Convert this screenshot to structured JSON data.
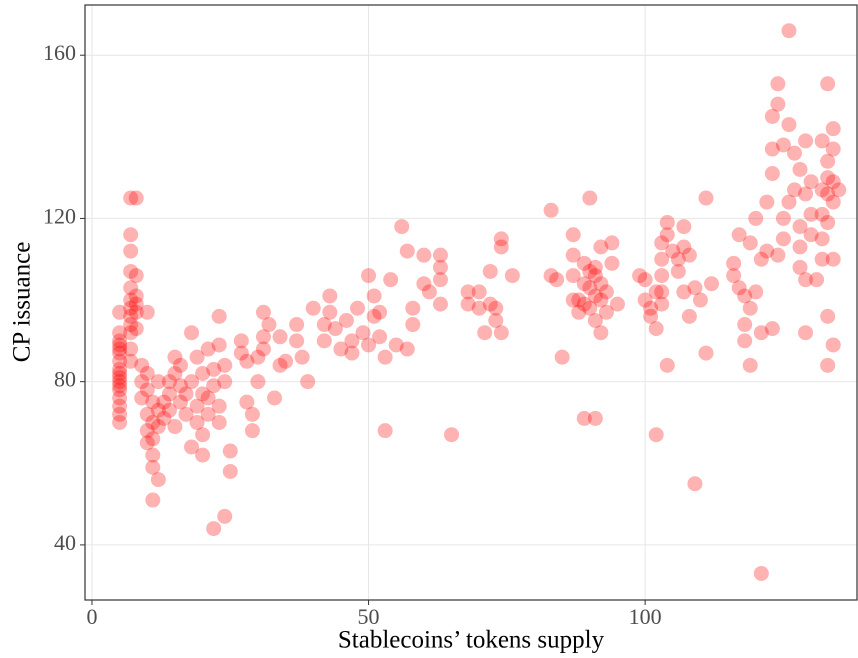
{
  "chart_data": {
    "type": "scatter",
    "x_label": "Stablecoins’ tokens supply",
    "y_label": "CP issuance",
    "color": "#ff0000",
    "grid": true,
    "xlim": [
      -1.26,
      138.3
    ],
    "ylim": [
      26.5,
      172.3
    ],
    "xticks": [
      0,
      50,
      100
    ],
    "yticks": [
      40,
      80,
      120,
      160
    ],
    "x": [
      5,
      5,
      5,
      5,
      5,
      5,
      5,
      5,
      5,
      5,
      5,
      5,
      5,
      5,
      5,
      5,
      5,
      7,
      7,
      7,
      7,
      7,
      7,
      7,
      7,
      7,
      7,
      7,
      7,
      8,
      8,
      8,
      8,
      8,
      8,
      9,
      9,
      9,
      10,
      10,
      10,
      10,
      10,
      10,
      11,
      11,
      11,
      11,
      11,
      11,
      12,
      12,
      12,
      12,
      13,
      13,
      14,
      14,
      14,
      15,
      15,
      15,
      16,
      16,
      16,
      17,
      17,
      18,
      18,
      18,
      19,
      19,
      19,
      20,
      20,
      20,
      20,
      21,
      21,
      21,
      22,
      22,
      22,
      23,
      23,
      23,
      23,
      24,
      24,
      25,
      25,
      24,
      27,
      27,
      28,
      28,
      29,
      29,
      30,
      30,
      31,
      31,
      31,
      32,
      33,
      34,
      34,
      35,
      37,
      37,
      38,
      39,
      40,
      42,
      42,
      43,
      43,
      44,
      45,
      46,
      47,
      47,
      48,
      49,
      50,
      50,
      51,
      51,
      52,
      52,
      53,
      53,
      54,
      55,
      56,
      57,
      57,
      58,
      58,
      60,
      60,
      61,
      63,
      63,
      63,
      63,
      65,
      68,
      68,
      70,
      70,
      71,
      72,
      72,
      73,
      73,
      74,
      74,
      74,
      76,
      83,
      83,
      84,
      85,
      87,
      87,
      87,
      87,
      88,
      88,
      89,
      89,
      89,
      89,
      90,
      90,
      90,
      90,
      91,
      91,
      91,
      91,
      91,
      92,
      92,
      92,
      92,
      93,
      93,
      94,
      94,
      95,
      99,
      100,
      100,
      101,
      101,
      102,
      102,
      102,
      103,
      103,
      103,
      103,
      103,
      104,
      104,
      104,
      105,
      106,
      106,
      107,
      107,
      107,
      108,
      108,
      109,
      109,
      110,
      111,
      111,
      112,
      116,
      116,
      117,
      117,
      118,
      118,
      118,
      119,
      119,
      119,
      120,
      120,
      121,
      121,
      121,
      122,
      122,
      123,
      123,
      123,
      123,
      124,
      124,
      124,
      125,
      125,
      125,
      126,
      126,
      126,
      127,
      127,
      128,
      128,
      128,
      128,
      129,
      129,
      129,
      129,
      130,
      130,
      130,
      131,
      132,
      132,
      132,
      132,
      132,
      133,
      133,
      133,
      133,
      133,
      133,
      133,
      134,
      134,
      134,
      134,
      134,
      134,
      135
    ],
    "values": [
      70,
      72,
      74,
      76,
      78,
      79,
      80,
      81,
      82,
      83,
      85,
      87,
      88,
      89,
      90,
      92,
      97,
      125,
      116,
      112,
      107,
      103,
      100,
      98,
      96,
      94,
      92,
      88,
      85,
      125,
      106,
      101,
      99,
      97,
      93,
      84,
      80,
      76,
      82,
      78,
      72,
      68,
      65,
      97,
      75,
      70,
      66,
      62,
      59,
      51,
      80,
      73,
      69,
      56,
      71,
      75,
      80,
      77,
      73,
      82,
      69,
      86,
      84,
      79,
      75,
      77,
      72,
      80,
      64,
      92,
      86,
      74,
      70,
      82,
      77,
      67,
      62,
      88,
      76,
      72,
      83,
      79,
      44,
      96,
      89,
      74,
      70,
      80,
      47,
      63,
      58,
      84,
      87,
      90,
      85,
      75,
      72,
      68,
      80,
      86,
      97,
      91,
      88,
      94,
      76,
      91,
      84,
      85,
      94,
      90,
      86,
      80,
      98,
      90,
      94,
      97,
      101,
      93,
      88,
      95,
      87,
      90,
      98,
      92,
      106,
      89,
      101,
      96,
      91,
      97,
      86,
      68,
      105,
      89,
      118,
      112,
      88,
      98,
      94,
      111,
      104,
      102,
      111,
      108,
      105,
      99,
      67,
      102,
      99,
      102,
      98,
      92,
      107,
      99,
      95,
      98,
      115,
      113,
      92,
      106,
      122,
      106,
      105,
      86,
      116,
      111,
      106,
      100,
      100,
      97,
      109,
      104,
      99,
      71,
      125,
      107,
      103,
      98,
      108,
      106,
      101,
      95,
      71,
      113,
      104,
      100,
      92,
      102,
      97,
      114,
      109,
      99,
      106,
      105,
      100,
      98,
      96,
      102,
      93,
      67,
      114,
      110,
      106,
      102,
      99,
      119,
      116,
      84,
      112,
      110,
      107,
      118,
      113,
      102,
      111,
      96,
      103,
      55,
      100,
      125,
      87,
      104,
      109,
      106,
      116,
      103,
      101,
      94,
      90,
      114,
      98,
      84,
      102,
      120,
      92,
      33,
      110,
      124,
      112,
      137,
      145,
      131,
      93,
      148,
      153,
      111,
      138,
      120,
      115,
      166,
      143,
      124,
      136,
      127,
      132,
      118,
      113,
      108,
      139,
      126,
      105,
      92,
      129,
      121,
      116,
      105,
      139,
      127,
      121,
      115,
      110,
      153,
      134,
      130,
      126,
      119,
      96,
      84,
      142,
      137,
      129,
      124,
      110,
      89,
      127
    ]
  }
}
